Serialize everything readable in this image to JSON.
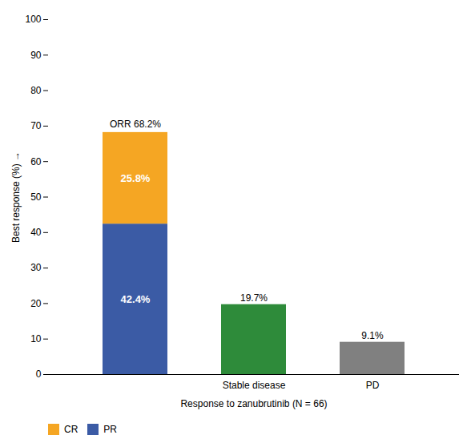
{
  "chart_data": {
    "type": "bar",
    "stacked": true,
    "categories": [
      null,
      "Stable disease",
      "PD"
    ],
    "series": [
      {
        "name": "PR",
        "color": "#3B5BA5",
        "values": [
          42.4,
          null,
          null
        ],
        "value_labels": [
          "42.4%",
          null,
          null
        ]
      },
      {
        "name": "CR",
        "color": "#F5A623",
        "values": [
          25.8,
          null,
          null
        ],
        "value_labels": [
          "25.8%",
          null,
          null
        ]
      },
      {
        "colors": [
          null,
          "#2E8B3A",
          "#808080"
        ],
        "values": [
          null,
          19.7,
          9.1
        ],
        "value_labels": [
          null,
          "19.7%",
          "9.1%"
        ]
      }
    ],
    "xlabel": "Response to zanubrutinib (N = 66)",
    "ylabel": "Best response (%)",
    "ylim": [
      0,
      100
    ],
    "yticks": [
      0,
      10,
      20,
      30,
      40,
      50,
      60,
      70,
      80,
      90,
      100
    ],
    "annotations": [
      {
        "text": "ORR 68.2%",
        "value": 68.2
      }
    ],
    "data_labels": true,
    "grid": false,
    "legend": "bottom"
  }
}
